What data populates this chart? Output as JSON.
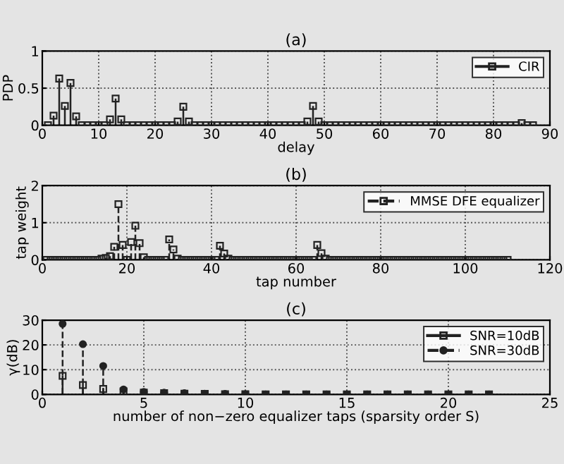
{
  "chart_data": [
    {
      "type": "lollipop",
      "title": "(a)",
      "xlabel": "delay",
      "ylabel": "PDP",
      "xlim": [
        0,
        90
      ],
      "xticks": [
        0,
        10,
        20,
        30,
        40,
        50,
        60,
        70,
        80,
        90
      ],
      "ylim": [
        0,
        1
      ],
      "yticks": [
        0,
        0.5,
        1
      ],
      "grid": true,
      "legend": "top right",
      "marker": "square",
      "line_style": "solid",
      "series": [
        {
          "name": "CIR",
          "color": "#222222",
          "x": [
            1,
            2,
            3,
            4,
            5,
            6,
            7,
            8,
            9,
            10,
            11,
            12,
            13,
            14,
            15,
            16,
            17,
            18,
            19,
            20,
            21,
            22,
            23,
            24,
            25,
            26,
            27,
            28,
            29,
            30,
            31,
            32,
            33,
            34,
            35,
            36,
            37,
            38,
            39,
            40,
            41,
            42,
            43,
            44,
            45,
            46,
            47,
            48,
            49,
            50,
            51,
            52,
            53,
            54,
            55,
            56,
            57,
            58,
            59,
            60,
            61,
            62,
            63,
            64,
            65,
            66,
            67,
            68,
            69,
            70,
            71,
            72,
            73,
            74,
            75,
            76,
            77,
            78,
            79,
            80,
            81,
            82,
            83,
            84,
            85,
            86,
            87
          ],
          "values": [
            0,
            0.13,
            0.63,
            0.26,
            0.57,
            0.12,
            0,
            0,
            0,
            0,
            0,
            0.08,
            0.36,
            0.08,
            0,
            0,
            0,
            0,
            0,
            0,
            0,
            0,
            0,
            0.05,
            0.25,
            0.05,
            0,
            0,
            0,
            0,
            0,
            0,
            0,
            0,
            0,
            0,
            0,
            0,
            0,
            0,
            0,
            0,
            0,
            0,
            0,
            0,
            0.05,
            0.26,
            0.05,
            0,
            0,
            0,
            0,
            0,
            0,
            0,
            0,
            0,
            0,
            0,
            0,
            0,
            0,
            0,
            0,
            0,
            0,
            0,
            0,
            0,
            0,
            0,
            0,
            0,
            0,
            0,
            0,
            0,
            0,
            0,
            0,
            0,
            0,
            0,
            0.03,
            0,
            0
          ]
        }
      ]
    },
    {
      "type": "lollipop",
      "title": "(b)",
      "xlabel": "tap number",
      "ylabel": "tap weight",
      "xlim": [
        0,
        120
      ],
      "xticks": [
        0,
        20,
        40,
        60,
        80,
        100,
        120
      ],
      "ylim": [
        0,
        2
      ],
      "yticks": [
        0,
        1,
        2
      ],
      "grid": true,
      "legend": "top right",
      "marker": "square",
      "line_style": "dashed",
      "series": [
        {
          "name": "MMSE DFE equalizer",
          "color": "#222222",
          "x": [
            1,
            2,
            3,
            4,
            5,
            6,
            7,
            8,
            9,
            10,
            11,
            12,
            13,
            14,
            15,
            16,
            17,
            18,
            19,
            20,
            21,
            22,
            23,
            24,
            25,
            26,
            27,
            28,
            29,
            30,
            31,
            32,
            33,
            34,
            35,
            36,
            37,
            38,
            39,
            40,
            41,
            42,
            43,
            44,
            45,
            46,
            47,
            48,
            49,
            50,
            51,
            52,
            53,
            54,
            55,
            56,
            57,
            58,
            59,
            60,
            61,
            62,
            63,
            64,
            65,
            66,
            67,
            68,
            69,
            70,
            71,
            72,
            73,
            74,
            75,
            76,
            77,
            78,
            79,
            80,
            81,
            82,
            83,
            84,
            85,
            86,
            87,
            88,
            89,
            90,
            91,
            92,
            93,
            94,
            95,
            96,
            97,
            98,
            99,
            100,
            101,
            102,
            103,
            104,
            105,
            106,
            107,
            108,
            109,
            110
          ],
          "values": [
            0,
            0,
            0,
            0,
            0,
            0,
            0,
            0,
            0,
            0,
            0,
            0,
            0,
            0.03,
            0.05,
            0.1,
            0.35,
            1.5,
            0.4,
            0,
            0.48,
            0.92,
            0.45,
            0.07,
            0,
            0,
            0,
            0,
            0,
            0.55,
            0.28,
            0.03,
            0,
            0,
            0,
            0,
            0,
            0,
            0,
            0,
            0,
            0.38,
            0.17,
            0.03,
            0,
            0,
            0,
            0,
            0,
            0,
            0,
            0,
            0,
            0,
            0,
            0,
            0,
            0,
            0,
            0,
            0,
            0,
            0,
            0,
            0.4,
            0.18,
            0.03,
            0,
            0,
            0,
            0,
            0,
            0,
            0,
            0,
            0,
            0,
            0,
            0,
            0,
            0,
            0,
            0,
            0,
            0,
            0,
            0,
            0,
            0,
            0,
            0,
            0,
            0,
            0,
            0,
            0,
            0,
            0,
            0,
            0,
            0,
            0,
            0,
            0,
            0,
            0,
            0,
            0,
            0,
            0
          ]
        }
      ]
    },
    {
      "type": "lollipop",
      "title": "(c)",
      "xlabel": "number of non−zero equalizer taps (sparsity order S)",
      "ylabel": "γ(dB)",
      "xlim": [
        0,
        25
      ],
      "xticks": [
        0,
        5,
        10,
        15,
        20,
        25
      ],
      "ylim": [
        0,
        30
      ],
      "yticks": [
        0,
        10,
        20,
        30
      ],
      "grid": true,
      "legend": "top right",
      "series": [
        {
          "name": "SNR=10dB",
          "color": "#222222",
          "marker": "square",
          "line_style": "solid",
          "x": [
            1,
            2,
            3,
            4,
            5,
            6,
            7,
            8,
            9,
            10,
            11,
            12,
            13,
            14,
            15,
            16,
            17,
            18,
            19,
            20,
            21,
            22
          ],
          "values": [
            7.5,
            3.8,
            2.2,
            1.2,
            0.7,
            0.5,
            0.3,
            0.2,
            0.1,
            0.1,
            0,
            0,
            0,
            0,
            0,
            0,
            0,
            0,
            0,
            0,
            0,
            0
          ]
        },
        {
          "name": "SNR=30dB",
          "color": "#222222",
          "marker": "circle",
          "line_style": "dashed",
          "x": [
            1,
            2,
            3,
            4,
            5,
            6,
            7,
            8,
            9,
            10,
            11,
            12,
            13,
            14,
            15,
            16,
            17,
            18,
            19,
            20,
            21,
            22
          ],
          "values": [
            28.5,
            20.3,
            11.5,
            2,
            1,
            0.7,
            0.5,
            0.3,
            0.2,
            0.1,
            0,
            0,
            0,
            0,
            0,
            0,
            0,
            0,
            0,
            0,
            0,
            0
          ]
        }
      ]
    }
  ]
}
